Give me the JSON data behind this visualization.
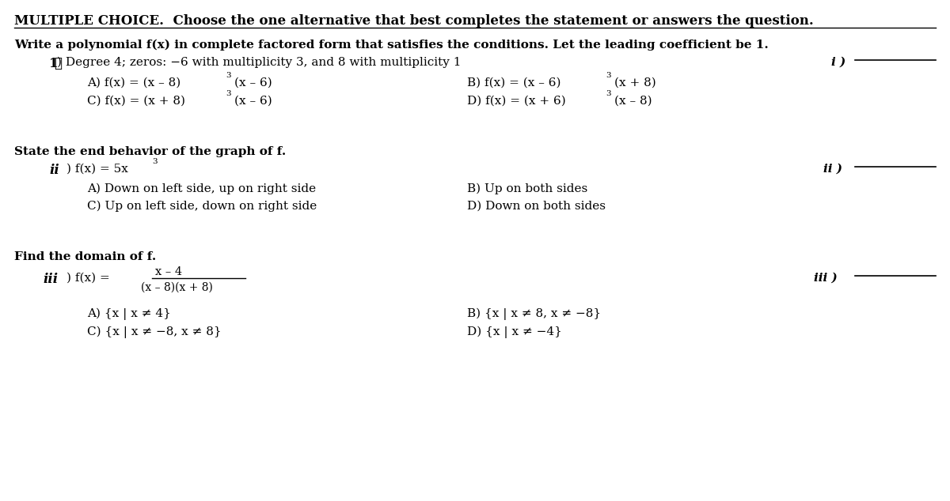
{
  "bg_color": "#ffffff",
  "title": "MULTIPLE CHOICE.  Choose the one alternative that best completes the statement or answers the question.",
  "section1_header": "Write a polynomial f(x) in complete factored form that satisfies the conditions. Let the leading coefficient be 1.",
  "section2_header": "State the end behavior of the graph of f.",
  "section3_header": "Find the domain of f.",
  "text_color": "#000000",
  "figw": 12.0,
  "figh": 6.34,
  "dpi": 100
}
